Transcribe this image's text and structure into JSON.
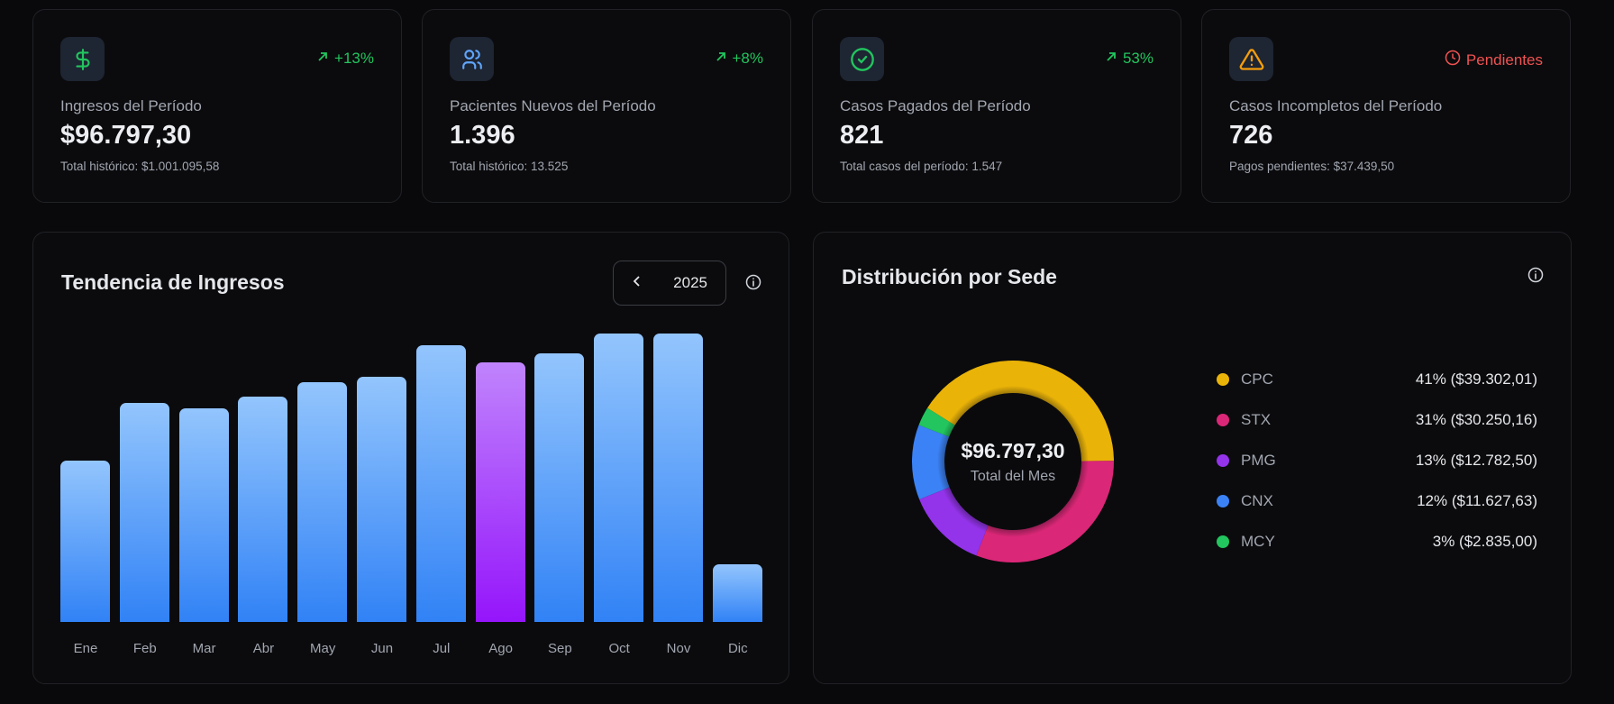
{
  "stats": [
    {
      "icon": "dollar-icon",
      "trend_icon": "arrow-up-right-icon",
      "trend": "+13%",
      "trend_color": "#22c55e",
      "label": "Ingresos del Período",
      "value": "$96.797,30",
      "sub": "Total histórico: $1.001.095,58",
      "icon_color": "#22c55e"
    },
    {
      "icon": "users-icon",
      "trend_icon": "arrow-up-right-icon",
      "trend": "+8%",
      "trend_color": "#22c55e",
      "label": "Pacientes Nuevos del Período",
      "value": "1.396",
      "sub": "Total histórico: 13.525",
      "icon_color": "#60a5fa"
    },
    {
      "icon": "check-circle-icon",
      "trend_icon": "arrow-up-right-icon",
      "trend": "53%",
      "trend_color": "#22c55e",
      "label": "Casos Pagados del Período",
      "value": "821",
      "sub": "Total casos del período: 1.547",
      "icon_color": "#22c55e"
    },
    {
      "icon": "warning-icon",
      "trend_icon": "clock-icon",
      "trend": "Pendientes",
      "trend_color": "#f05252",
      "label": "Casos Incompletos del Período",
      "value": "726",
      "sub": "Pagos pendientes: $37.439,50",
      "icon_color": "#f59e0b"
    }
  ],
  "trend_card": {
    "title": "Tendencia de Ingresos",
    "year": "2025"
  },
  "donut_card": {
    "title": "Distribución por Sede",
    "center_value": "$96.797,30",
    "center_label": "Total del Mes"
  },
  "chart_data": [
    {
      "type": "bar",
      "title": "Tendencia de Ingresos",
      "categories": [
        "Ene",
        "Feb",
        "Mar",
        "Abr",
        "May",
        "Jun",
        "Jul",
        "Ago",
        "Sep",
        "Oct",
        "Nov",
        "Dic"
      ],
      "values": [
        56,
        76,
        74,
        78,
        83,
        85,
        96,
        90,
        93,
        100,
        100,
        20
      ],
      "value_note": "relative heights, no axis printed",
      "highlighted": "Ago",
      "colors": {
        "bar": "#3b82f6",
        "highlight": "#a855f7"
      }
    },
    {
      "type": "pie",
      "title": "Distribución por Sede",
      "donut": true,
      "slices": [
        {
          "name": "CPC",
          "percent": 41,
          "label": "41% ($39.302,01)",
          "value": 39302.01,
          "color": "#eab308"
        },
        {
          "name": "STX",
          "percent": 31,
          "label": "31% ($30.250,16)",
          "value": 30250.16,
          "color": "#db2777"
        },
        {
          "name": "PMG",
          "percent": 13,
          "label": "13% ($12.782,50)",
          "value": 12782.5,
          "color": "#9333ea"
        },
        {
          "name": "CNX",
          "percent": 12,
          "label": "12% ($11.627,63)",
          "value": 11627.63,
          "color": "#3b82f6"
        },
        {
          "name": "MCY",
          "percent": 3,
          "label": "3% ($2.835,00)",
          "value": 2835.0,
          "color": "#22c55e"
        }
      ]
    }
  ]
}
